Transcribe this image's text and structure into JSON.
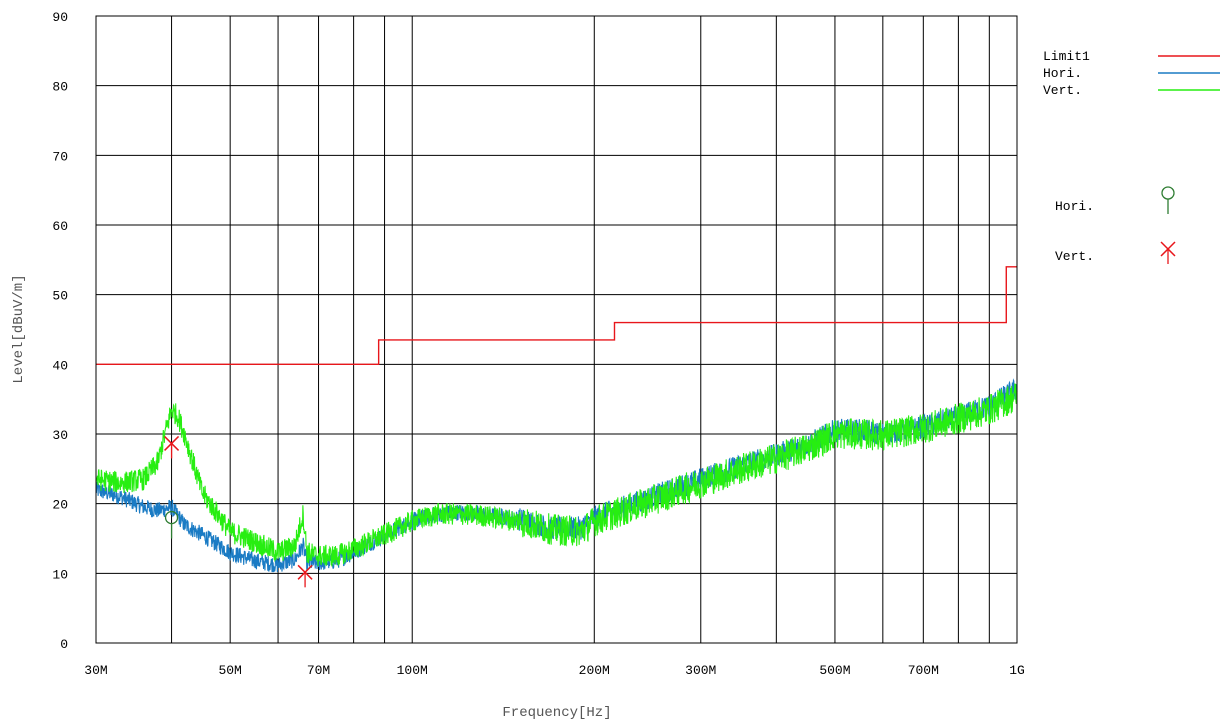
{
  "chart_data": {
    "type": "line",
    "xlabel": "Frequency[Hz]",
    "ylabel": "Level[dBuV/m]",
    "x_scale": "log",
    "xlim": [
      30000000,
      1000000000
    ],
    "ylim": [
      0,
      90
    ],
    "grid": true,
    "legend_position": "right",
    "x_ticks": [
      {
        "value": 30000000,
        "label": "30M"
      },
      {
        "value": 40000000,
        "label": ""
      },
      {
        "value": 50000000,
        "label": "50M"
      },
      {
        "value": 60000000,
        "label": ""
      },
      {
        "value": 70000000,
        "label": "70M"
      },
      {
        "value": 80000000,
        "label": ""
      },
      {
        "value": 90000000,
        "label": ""
      },
      {
        "value": 100000000,
        "label": "100M"
      },
      {
        "value": 200000000,
        "label": "200M"
      },
      {
        "value": 300000000,
        "label": "300M"
      },
      {
        "value": 400000000,
        "label": ""
      },
      {
        "value": 500000000,
        "label": "500M"
      },
      {
        "value": 600000000,
        "label": ""
      },
      {
        "value": 700000000,
        "label": "700M"
      },
      {
        "value": 800000000,
        "label": ""
      },
      {
        "value": 900000000,
        "label": ""
      },
      {
        "value": 1000000000,
        "label": "1G"
      }
    ],
    "y_ticks": [
      {
        "value": 0,
        "label": "0"
      },
      {
        "value": 10,
        "label": "10"
      },
      {
        "value": 20,
        "label": "20"
      },
      {
        "value": 30,
        "label": "30"
      },
      {
        "value": 40,
        "label": "40"
      },
      {
        "value": 50,
        "label": "50"
      },
      {
        "value": 60,
        "label": "60"
      },
      {
        "value": 70,
        "label": "70"
      },
      {
        "value": 80,
        "label": "80"
      },
      {
        "value": 90,
        "label": "90"
      }
    ],
    "series": [
      {
        "name": "Limit1",
        "color": "#e8161b",
        "style": "step",
        "x": [
          30000000,
          88000000,
          88000000,
          216000000,
          216000000,
          960000000,
          960000000,
          1000000000
        ],
        "y": [
          40,
          40,
          43.5,
          43.5,
          46,
          46,
          54,
          54
        ]
      },
      {
        "name": "Hori.",
        "color": "#1a7bc4",
        "style": "noisy",
        "noise": 1.2,
        "x": [
          30000000,
          33000000,
          36000000,
          38000000,
          40000000,
          42000000,
          45000000,
          50000000,
          55000000,
          60000000,
          64000000,
          66000000,
          67000000,
          70000000,
          75000000,
          80000000,
          90000000,
          100000000,
          110000000,
          120000000,
          130000000,
          150000000,
          170000000,
          190000000,
          200000000,
          250000000,
          300000000,
          350000000,
          400000000,
          450000000,
          500000000,
          550000000,
          600000000,
          700000000,
          800000000,
          900000000,
          1000000000
        ],
        "y": [
          22,
          21,
          19.5,
          19,
          19.5,
          17,
          15.5,
          13,
          11.8,
          11.2,
          12,
          14,
          11.5,
          11.5,
          11.8,
          13,
          15.5,
          17.5,
          18.5,
          18.8,
          18.5,
          17.8,
          16.5,
          16.5,
          18,
          21,
          23.5,
          25.5,
          27,
          28.5,
          30.5,
          30.5,
          30,
          31,
          32.5,
          34,
          36.5
        ]
      },
      {
        "name": "Vert.",
        "color": "#27ee11",
        "style": "noisy",
        "noise": 1.6,
        "x": [
          30000000,
          33000000,
          36000000,
          38000000,
          39000000,
          40000000,
          41000000,
          42000000,
          45000000,
          50000000,
          55000000,
          60000000,
          64000000,
          66000000,
          67000000,
          70000000,
          75000000,
          80000000,
          90000000,
          100000000,
          110000000,
          120000000,
          130000000,
          150000000,
          170000000,
          190000000,
          200000000,
          250000000,
          300000000,
          350000000,
          400000000,
          450000000,
          500000000,
          550000000,
          600000000,
          700000000,
          800000000,
          900000000,
          1000000000
        ],
        "y": [
          23.5,
          23,
          23.5,
          26,
          30,
          33.5,
          32.5,
          30,
          21.5,
          16,
          14.5,
          13,
          14,
          18.5,
          13,
          12.5,
          12.5,
          13.5,
          15.5,
          17.5,
          18.5,
          18.5,
          18.3,
          17.5,
          16.3,
          16,
          17.5,
          20.5,
          23,
          25,
          26.5,
          28,
          30,
          30,
          29.8,
          30.8,
          32.2,
          33.5,
          35.5
        ]
      }
    ],
    "markers": [
      {
        "name": "Hori.",
        "symbol": "o",
        "color": "#2e7d32",
        "x": 40000000,
        "y": 17
      },
      {
        "name": "Vert.",
        "symbol": "x",
        "color": "#e8161b",
        "x": 40000000,
        "y": 28.5
      },
      {
        "name": "Vert.",
        "symbol": "x",
        "color": "#e8161b",
        "x": 66500000,
        "y": 10
      }
    ],
    "legend_lines": [
      {
        "label": "Limit1",
        "color": "#e8161b"
      },
      {
        "label": "Hori.",
        "color": "#1a7bc4"
      },
      {
        "label": "Vert.",
        "color": "#27ee11"
      }
    ],
    "legend_markers": [
      {
        "label": "Hori.",
        "symbol": "o",
        "color": "#2e7d32"
      },
      {
        "label": "Vert.",
        "symbol": "x",
        "color": "#e8161b"
      }
    ]
  }
}
